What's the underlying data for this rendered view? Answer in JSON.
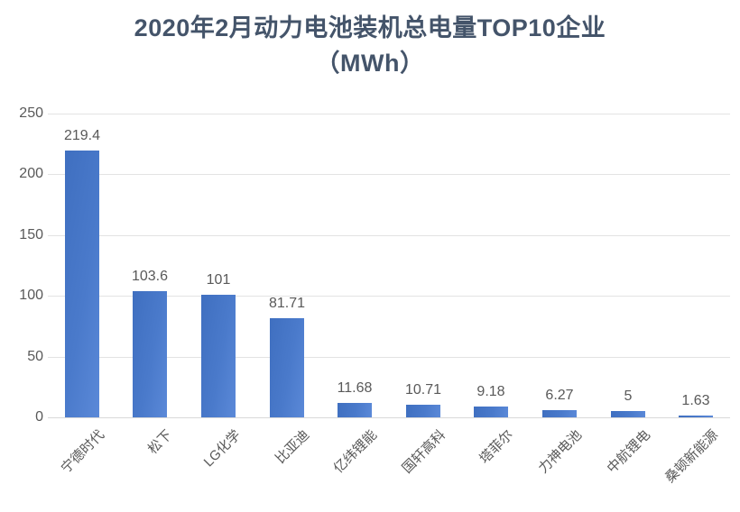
{
  "title": {
    "line1": "2020年2月动力电池装机总电量TOP10企业",
    "line2": "（MWh）"
  },
  "chart_data": {
    "type": "bar",
    "title": "2020年2月动力电池装机总电量TOP10企业（MWh）",
    "categories": [
      "宁德时代",
      "松下",
      "LG化学",
      "比亚迪",
      "亿纬锂能",
      "国轩高科",
      "塔菲尔",
      "力神电池",
      "中航锂电",
      "桑顿新能源"
    ],
    "values": [
      219.4,
      103.6,
      101,
      81.71,
      11.68,
      10.71,
      9.18,
      6.27,
      5,
      1.63
    ],
    "data_labels": [
      "219.4",
      "103.6",
      "101",
      "81.71",
      "11.68",
      "10.71",
      "9.18",
      "6.27",
      "5",
      "1.63"
    ],
    "xlabel": "",
    "ylabel": "",
    "ylim": [
      0,
      250
    ],
    "yticks": [
      0,
      50,
      100,
      150,
      200,
      250
    ],
    "grid": true,
    "legend": false,
    "colors": {
      "bar": "#4472C4",
      "bar_gradient_start": "#3F6FC0",
      "bar_gradient_end": "#5B89D8",
      "title_text": "#44546A",
      "axis_text": "#595959",
      "gridline": "#E3E3E3"
    }
  }
}
